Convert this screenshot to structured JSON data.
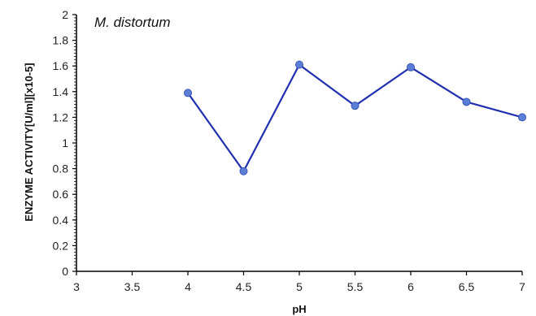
{
  "chart_data": {
    "type": "line",
    "title": "",
    "annotation": "M. distortum",
    "xlabel": "pH",
    "ylabel": "ENZYME ACTIVITY[U/ml][x10-5]",
    "xlim": [
      3,
      7
    ],
    "ylim": [
      0,
      2
    ],
    "x_ticks": [
      "3",
      "3.5",
      "4",
      "4.5",
      "5",
      "5.5",
      "6",
      "6.5",
      "7"
    ],
    "y_ticks": [
      "0",
      "0.2",
      "0.4",
      "0.6",
      "0.8",
      "1",
      "1.2",
      "1.4",
      "1.6",
      "1.8",
      "2"
    ],
    "grid": false,
    "series": [
      {
        "x": [
          4,
          4.5,
          5,
          5.5,
          6,
          6.5,
          7
        ],
        "y": [
          1.39,
          0.78,
          1.61,
          1.29,
          1.59,
          1.32,
          1.2
        ],
        "line_color": "#1f2fb0",
        "marker_color": "#5b7fd6"
      }
    ]
  }
}
